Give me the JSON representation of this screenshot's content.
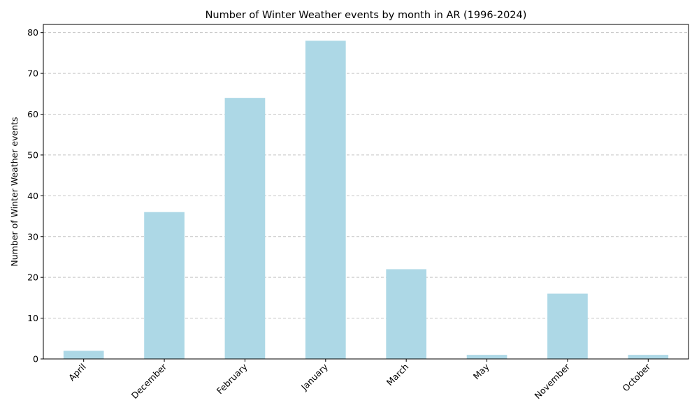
{
  "chart_data": {
    "type": "bar",
    "title": "Number of Winter Weather events by month in AR (1996-2024)",
    "xlabel": "",
    "ylabel": "Number of Winter Weather events",
    "categories": [
      "April",
      "December",
      "February",
      "January",
      "March",
      "May",
      "November",
      "October"
    ],
    "values": [
      2,
      36,
      64,
      78,
      22,
      1,
      16,
      1
    ],
    "ylim": [
      0,
      82
    ],
    "yticks": [
      0,
      10,
      20,
      30,
      40,
      50,
      60,
      70,
      80
    ],
    "grid": "y-dashed",
    "bar_color": "#add8e6",
    "legend": "none"
  }
}
